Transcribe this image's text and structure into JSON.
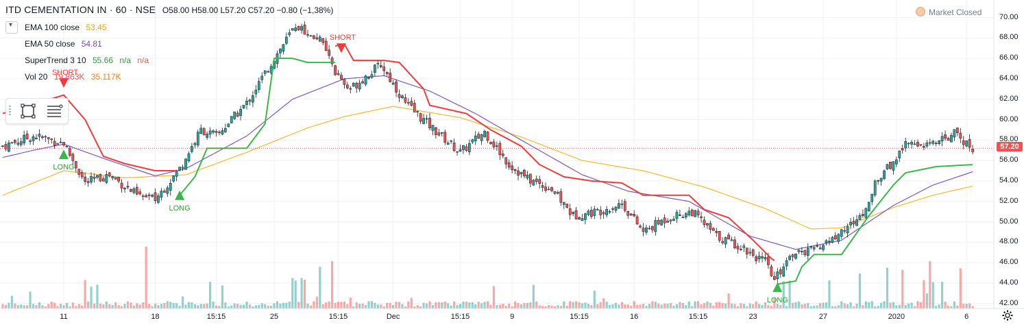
{
  "header": {
    "symbol": "ITD CEMENTATION IN · 60 · NSE",
    "ohlc": "O58.00 H58.00 L57.20 C57.20 −0.80 (−1,38%)"
  },
  "indicators": [
    {
      "name": "EMA 100 close",
      "value": "53.45",
      "color": "#f0a500"
    },
    {
      "name": "EMA 50 close",
      "value": "54.81",
      "color": "#6f4bb2"
    },
    {
      "name": "SuperTrend 3 10",
      "value": "55.66",
      "extra": "n/a",
      "extra2": "n/a",
      "color": "#2e9d3a",
      "color2": "#ef5350"
    },
    {
      "name": "Vol 20",
      "value": "19.863K",
      "extra": "35.117K",
      "color": "#ef5350",
      "color2": "#f57f17"
    }
  ],
  "market_status": "Market Closed",
  "current_price": "57.20",
  "colors": {
    "up": "#26a69a",
    "down": "#ef5350",
    "st_up": "#3bb64a",
    "st_down": "#ef3b3b",
    "ema100": "#f3b92e",
    "ema50": "#7e57c2",
    "grid": "#eef0f3"
  },
  "icons": {
    "collapse": "chevron-down-icon",
    "rectangle": "rectangle-tool-icon",
    "lines": "lines-tool-icon",
    "settings": "gear-icon"
  },
  "chart_data": {
    "type": "candlestick",
    "y_ticks": [
      "70.00",
      "68.00",
      "66.00",
      "64.00",
      "62.00",
      "60.00",
      "58.00",
      "56.00",
      "54.00",
      "52.00",
      "50.00",
      "48.00",
      "46.00",
      "44.00",
      "42.00"
    ],
    "ylim": [
      41.5,
      71.2
    ],
    "x_ticks": [
      {
        "label": "11",
        "i": 20
      },
      {
        "label": "18",
        "i": 50
      },
      {
        "label": "15:15",
        "i": 70
      },
      {
        "label": "25",
        "i": 89
      },
      {
        "label": "15:15",
        "i": 110
      },
      {
        "label": "Dec",
        "i": 128
      },
      {
        "label": "15:15",
        "i": 150
      },
      {
        "label": "9",
        "i": 167
      },
      {
        "label": "15:15",
        "i": 189
      },
      {
        "label": "16",
        "i": 207
      },
      {
        "label": "15:15",
        "i": 228
      },
      {
        "label": "23",
        "i": 246
      },
      {
        "label": "27",
        "i": 269
      },
      {
        "label": "2020",
        "i": 293
      },
      {
        "label": "6",
        "i": 316
      }
    ],
    "close_path": [
      [
        0,
        57.4
      ],
      [
        10,
        58.4
      ],
      [
        20,
        57.7
      ],
      [
        27,
        53.8
      ],
      [
        35,
        54.6
      ],
      [
        44,
        52.6
      ],
      [
        50,
        52.2
      ],
      [
        58,
        55.2
      ],
      [
        65,
        59.0
      ],
      [
        70,
        58.4
      ],
      [
        80,
        61.6
      ],
      [
        89,
        66.0
      ],
      [
        96,
        69.2
      ],
      [
        104,
        67.8
      ],
      [
        109,
        64.6
      ],
      [
        113,
        62.8
      ],
      [
        118,
        64.0
      ],
      [
        124,
        65.4
      ],
      [
        132,
        61.6
      ],
      [
        140,
        59.4
      ],
      [
        150,
        56.8
      ],
      [
        158,
        58.8
      ],
      [
        166,
        55.6
      ],
      [
        172,
        54.2
      ],
      [
        180,
        53.2
      ],
      [
        187,
        50.6
      ],
      [
        195,
        51.0
      ],
      [
        203,
        51.8
      ],
      [
        210,
        49.0
      ],
      [
        218,
        50.4
      ],
      [
        226,
        51.0
      ],
      [
        234,
        48.6
      ],
      [
        242,
        47.6
      ],
      [
        250,
        46.0
      ],
      [
        253,
        44.2
      ],
      [
        258,
        46.8
      ],
      [
        266,
        47.2
      ],
      [
        273,
        48.6
      ],
      [
        281,
        50.4
      ],
      [
        286,
        53.6
      ],
      [
        292,
        56.0
      ],
      [
        296,
        57.6
      ],
      [
        306,
        57.6
      ],
      [
        312,
        58.6
      ],
      [
        318,
        57.2
      ]
    ],
    "ema100_path": [
      [
        0,
        52.6
      ],
      [
        20,
        55.0
      ],
      [
        40,
        54.3
      ],
      [
        60,
        54.6
      ],
      [
        80,
        56.8
      ],
      [
        100,
        59.2
      ],
      [
        112,
        60.3
      ],
      [
        128,
        61.3
      ],
      [
        150,
        60.2
      ],
      [
        170,
        58.3
      ],
      [
        190,
        56.0
      ],
      [
        210,
        55.0
      ],
      [
        230,
        53.4
      ],
      [
        250,
        51.3
      ],
      [
        265,
        49.3
      ],
      [
        275,
        49.4
      ],
      [
        292,
        51.4
      ],
      [
        305,
        52.6
      ],
      [
        318,
        53.5
      ]
    ],
    "ema50_path": [
      [
        0,
        56.3
      ],
      [
        10,
        57.0
      ],
      [
        20,
        57.6
      ],
      [
        35,
        56.0
      ],
      [
        50,
        54.5
      ],
      [
        60,
        55.2
      ],
      [
        80,
        58.4
      ],
      [
        95,
        62.0
      ],
      [
        112,
        64.0
      ],
      [
        125,
        64.3
      ],
      [
        140,
        62.8
      ],
      [
        155,
        60.6
      ],
      [
        170,
        58.0
      ],
      [
        190,
        54.6
      ],
      [
        205,
        53.0
      ],
      [
        225,
        52.0
      ],
      [
        245,
        48.6
      ],
      [
        260,
        47.3
      ],
      [
        275,
        48.2
      ],
      [
        292,
        51.6
      ],
      [
        305,
        53.6
      ],
      [
        318,
        54.9
      ]
    ],
    "supertrend_segments": [
      {
        "trend": "down",
        "points": [
          [
            0,
            60.6
          ],
          [
            20,
            62.4
          ],
          [
            27,
            60.0
          ],
          [
            33,
            56.4
          ],
          [
            40,
            55.7
          ],
          [
            50,
            55.0
          ],
          [
            57,
            55.0
          ]
        ]
      },
      {
        "trend": "up",
        "points": [
          [
            58,
            52.6
          ],
          [
            63,
            54.4
          ],
          [
            67,
            57.2
          ],
          [
            80,
            57.2
          ],
          [
            86,
            59.6
          ],
          [
            89,
            66.0
          ],
          [
            95,
            66.0
          ],
          [
            100,
            65.6
          ],
          [
            109,
            65.6
          ]
        ]
      },
      {
        "trend": "down",
        "points": [
          [
            109,
            67.2
          ],
          [
            112,
            67.4
          ],
          [
            115,
            65.8
          ],
          [
            125,
            65.8
          ],
          [
            130,
            65.6
          ],
          [
            138,
            63.0
          ],
          [
            140,
            61.4
          ],
          [
            152,
            60.6
          ],
          [
            160,
            59.0
          ],
          [
            170,
            57.4
          ],
          [
            176,
            55.6
          ],
          [
            184,
            54.4
          ],
          [
            193,
            54.0
          ],
          [
            203,
            53.8
          ],
          [
            210,
            52.6
          ],
          [
            225,
            52.6
          ],
          [
            230,
            51.2
          ],
          [
            238,
            50.4
          ],
          [
            246,
            48.2
          ],
          [
            252,
            46.4
          ],
          [
            253,
            46.2
          ]
        ]
      },
      {
        "trend": "up",
        "points": [
          [
            254,
            43.9
          ],
          [
            260,
            44.2
          ],
          [
            262,
            45.6
          ],
          [
            266,
            46.8
          ],
          [
            275,
            46.8
          ],
          [
            284,
            50.6
          ],
          [
            292,
            53.6
          ],
          [
            296,
            54.8
          ],
          [
            306,
            55.4
          ],
          [
            318,
            55.6
          ]
        ]
      }
    ],
    "signals": [
      {
        "type": "SHORT",
        "i": 20,
        "price": 63.6
      },
      {
        "type": "LONG",
        "i": 20,
        "price": 56.6
      },
      {
        "type": "LONG",
        "i": 58,
        "price": 52.6
      },
      {
        "type": "SHORT",
        "i": 111,
        "price": 67.0
      },
      {
        "type": "LONG",
        "i": 254,
        "price": 43.6
      }
    ],
    "candle_count": 319,
    "price_line": 57.2
  }
}
